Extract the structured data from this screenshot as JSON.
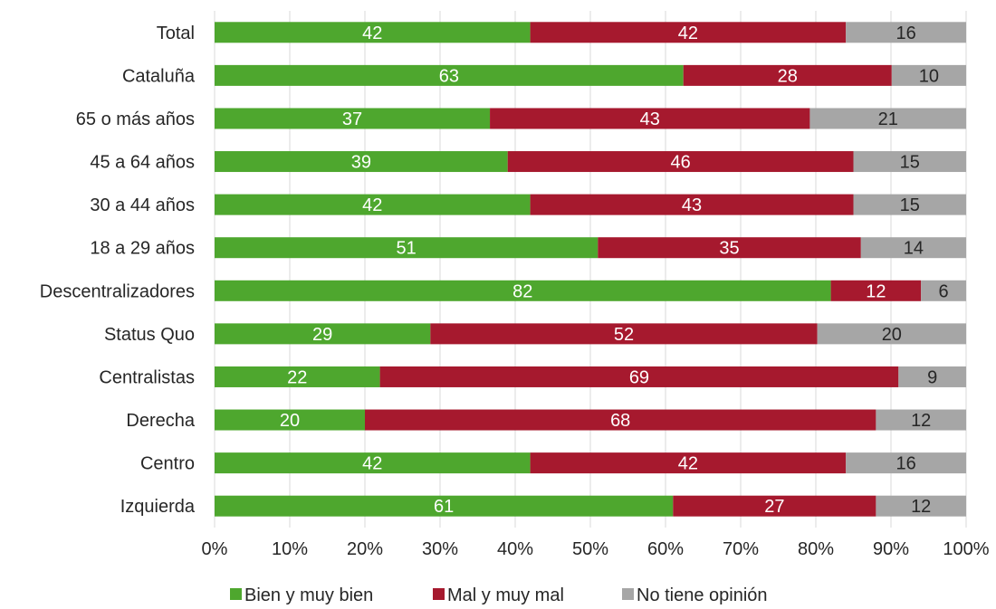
{
  "chart_data": {
    "type": "bar",
    "orientation": "horizontal",
    "stacked": "percent",
    "title": "",
    "xlabel": "",
    "ylabel": "",
    "xlim": [
      0,
      100
    ],
    "grid": true,
    "legend_position": "bottom",
    "categories": [
      "Total",
      "Cataluña",
      "65 o más años",
      "45 a 64 años",
      "30 a 44 años",
      "18 a 29 años",
      "Descentralizadores",
      "Status Quo",
      "Centralistas",
      "Derecha",
      "Centro",
      "Izquierda"
    ],
    "series": [
      {
        "name": "Bien y muy bien",
        "color": "#4EA72E",
        "values": [
          42,
          63,
          37,
          39,
          42,
          51,
          82,
          29,
          22,
          20,
          42,
          61
        ]
      },
      {
        "name": "Mal y muy mal",
        "color": "#A6192E",
        "values": [
          42,
          28,
          43,
          46,
          43,
          35,
          12,
          52,
          69,
          68,
          42,
          27
        ]
      },
      {
        "name": "No tiene opinión",
        "color": "#A6A6A6",
        "values": [
          16,
          10,
          21,
          15,
          15,
          14,
          6,
          20,
          9,
          12,
          16,
          12
        ]
      }
    ],
    "x_ticks": [
      "0%",
      "10%",
      "20%",
      "30%",
      "40%",
      "50%",
      "60%",
      "70%",
      "80%",
      "90%",
      "100%"
    ]
  }
}
